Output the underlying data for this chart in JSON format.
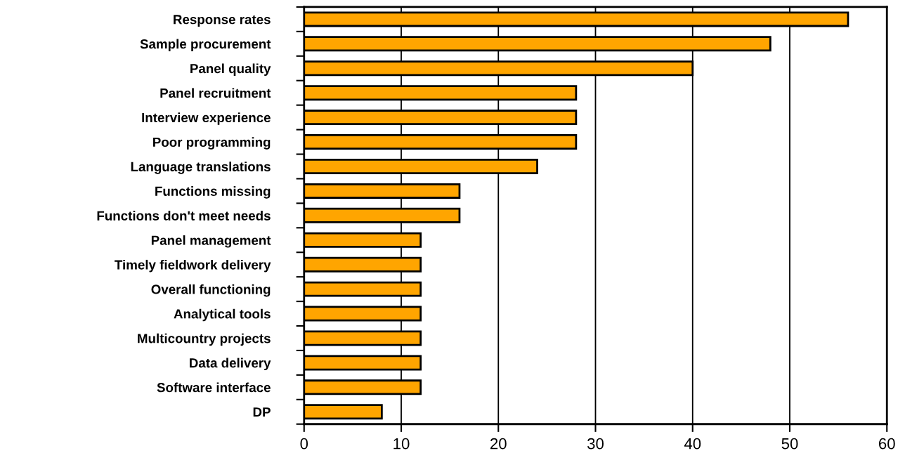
{
  "chart_data": {
    "type": "bar",
    "orientation": "horizontal",
    "categories": [
      "Response rates",
      "Sample procurement",
      "Panel quality",
      "Panel recruitment",
      "Interview experience",
      "Poor programming",
      "Language translations",
      "Functions missing",
      "Functions don't meet needs",
      "Panel management",
      "Timely fieldwork delivery",
      "Overall functioning",
      "Analytical tools",
      "Multicountry projects",
      "Data delivery",
      "Software interface",
      "DP"
    ],
    "values": [
      56,
      48,
      40,
      28,
      28,
      28,
      24,
      16,
      16,
      12,
      12,
      12,
      12,
      12,
      12,
      12,
      8
    ],
    "color": "#ffa500",
    "xlim": [
      0,
      60
    ],
    "xticks": [
      0,
      10,
      20,
      30,
      40,
      50,
      60
    ],
    "grid": "x"
  }
}
